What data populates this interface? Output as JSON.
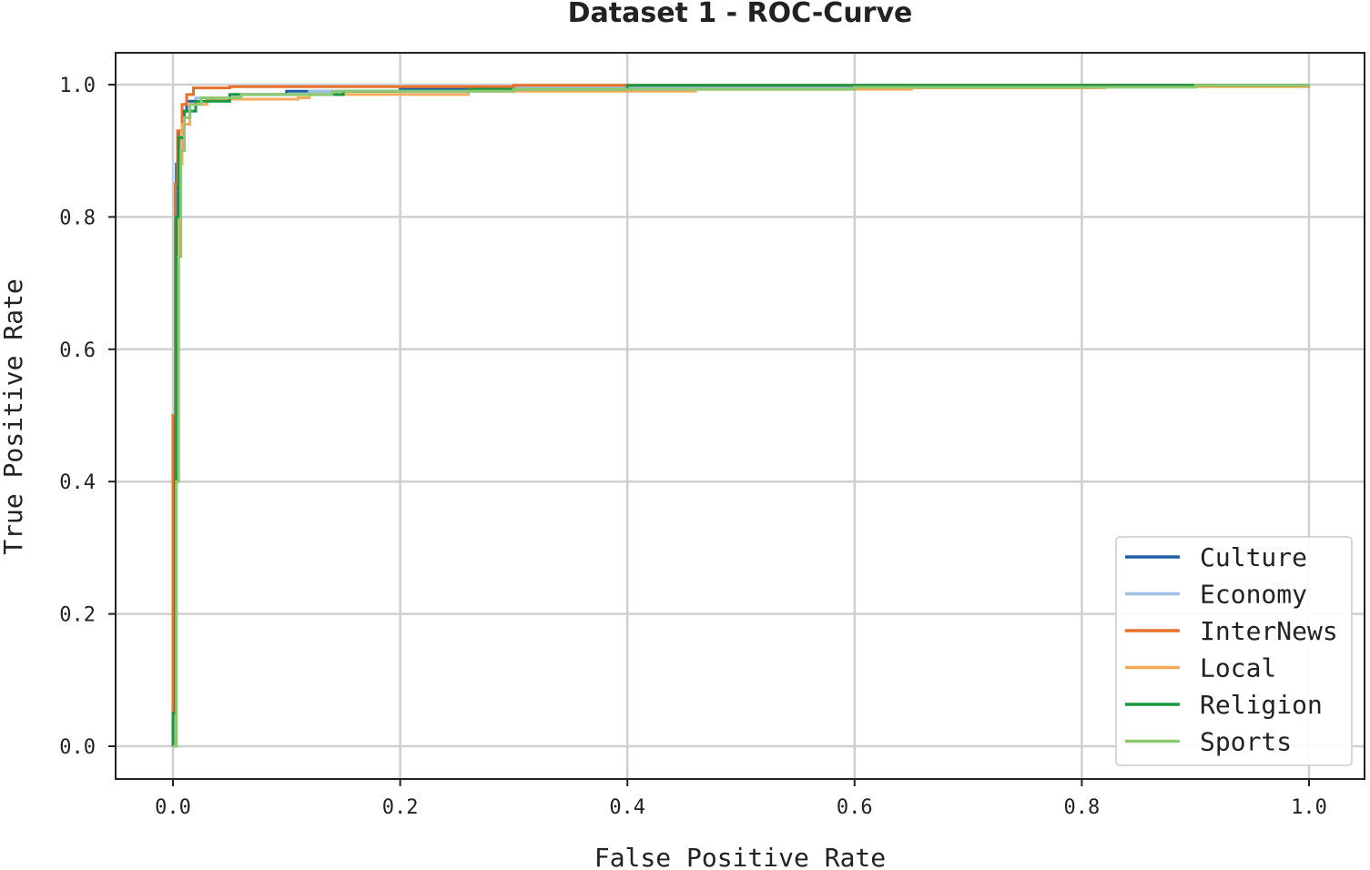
{
  "chart_data": {
    "type": "line",
    "title": "Dataset 1 - ROC-Curve",
    "xlabel": "False Positive Rate",
    "ylabel": "True Positive Rate",
    "xlim": [
      0.0,
      1.0
    ],
    "ylim": [
      0.0,
      1.0
    ],
    "x_ticks": [
      "0.0",
      "0.2",
      "0.4",
      "0.6",
      "0.8",
      "1.0"
    ],
    "y_ticks": [
      "0.0",
      "0.2",
      "0.4",
      "0.6",
      "0.8",
      "1.0"
    ],
    "grid": true,
    "legend_position": "bottom-right",
    "series": [
      {
        "name": "Culture",
        "color": "#1f5fa6",
        "points": [
          [
            0.0,
            0.0
          ],
          [
            0.0,
            0.3
          ],
          [
            0.002,
            0.7
          ],
          [
            0.003,
            0.88
          ],
          [
            0.005,
            0.93
          ],
          [
            0.008,
            0.96
          ],
          [
            0.012,
            0.975
          ],
          [
            0.02,
            0.98
          ],
          [
            0.05,
            0.985
          ],
          [
            0.1,
            0.99
          ],
          [
            0.2,
            0.993
          ],
          [
            0.4,
            0.996
          ],
          [
            0.6,
            0.998
          ],
          [
            0.8,
            0.999
          ],
          [
            1.0,
            1.0
          ]
        ]
      },
      {
        "name": "Economy",
        "color": "#9ec3e6",
        "points": [
          [
            0.0,
            0.0
          ],
          [
            0.002,
            0.4
          ],
          [
            0.004,
            0.8
          ],
          [
            0.006,
            0.92
          ],
          [
            0.01,
            0.96
          ],
          [
            0.02,
            0.98
          ],
          [
            0.05,
            0.985
          ],
          [
            0.12,
            0.99
          ],
          [
            0.3,
            0.995
          ],
          [
            0.6,
            0.998
          ],
          [
            1.0,
            1.0
          ]
        ]
      },
      {
        "name": "InterNews",
        "color": "#e8702a",
        "points": [
          [
            0.0,
            0.0
          ],
          [
            0.0,
            0.5
          ],
          [
            0.002,
            0.85
          ],
          [
            0.004,
            0.93
          ],
          [
            0.008,
            0.97
          ],
          [
            0.012,
            0.985
          ],
          [
            0.018,
            0.995
          ],
          [
            0.05,
            0.997
          ],
          [
            0.3,
            0.999
          ],
          [
            1.0,
            1.0
          ]
        ]
      },
      {
        "name": "Local",
        "color": "#f5aa5c",
        "points": [
          [
            0.0,
            0.0
          ],
          [
            0.003,
            0.6
          ],
          [
            0.005,
            0.88
          ],
          [
            0.008,
            0.94
          ],
          [
            0.015,
            0.97
          ],
          [
            0.03,
            0.978
          ],
          [
            0.11,
            0.98
          ],
          [
            0.12,
            0.985
          ],
          [
            0.26,
            0.99
          ],
          [
            0.46,
            0.993
          ],
          [
            0.65,
            0.995
          ],
          [
            0.82,
            0.997
          ],
          [
            1.0,
            1.0
          ]
        ]
      },
      {
        "name": "Religion",
        "color": "#1a9641",
        "points": [
          [
            0.0,
            0.0
          ],
          [
            0.0,
            0.05
          ],
          [
            0.002,
            0.4
          ],
          [
            0.003,
            0.8
          ],
          [
            0.005,
            0.92
          ],
          [
            0.01,
            0.96
          ],
          [
            0.02,
            0.975
          ],
          [
            0.05,
            0.985
          ],
          [
            0.15,
            0.99
          ],
          [
            0.26,
            0.993
          ],
          [
            0.4,
            0.999
          ],
          [
            1.0,
            1.0
          ]
        ]
      },
      {
        "name": "Sports",
        "color": "#8cc972",
        "points": [
          [
            0.0,
            0.0
          ],
          [
            0.003,
            0.4
          ],
          [
            0.005,
            0.74
          ],
          [
            0.007,
            0.9
          ],
          [
            0.01,
            0.95
          ],
          [
            0.015,
            0.97
          ],
          [
            0.025,
            0.98
          ],
          [
            0.06,
            0.985
          ],
          [
            0.14,
            0.99
          ],
          [
            0.3,
            0.993
          ],
          [
            0.6,
            0.996
          ],
          [
            0.9,
            0.999
          ],
          [
            1.0,
            1.0
          ]
        ]
      }
    ]
  }
}
